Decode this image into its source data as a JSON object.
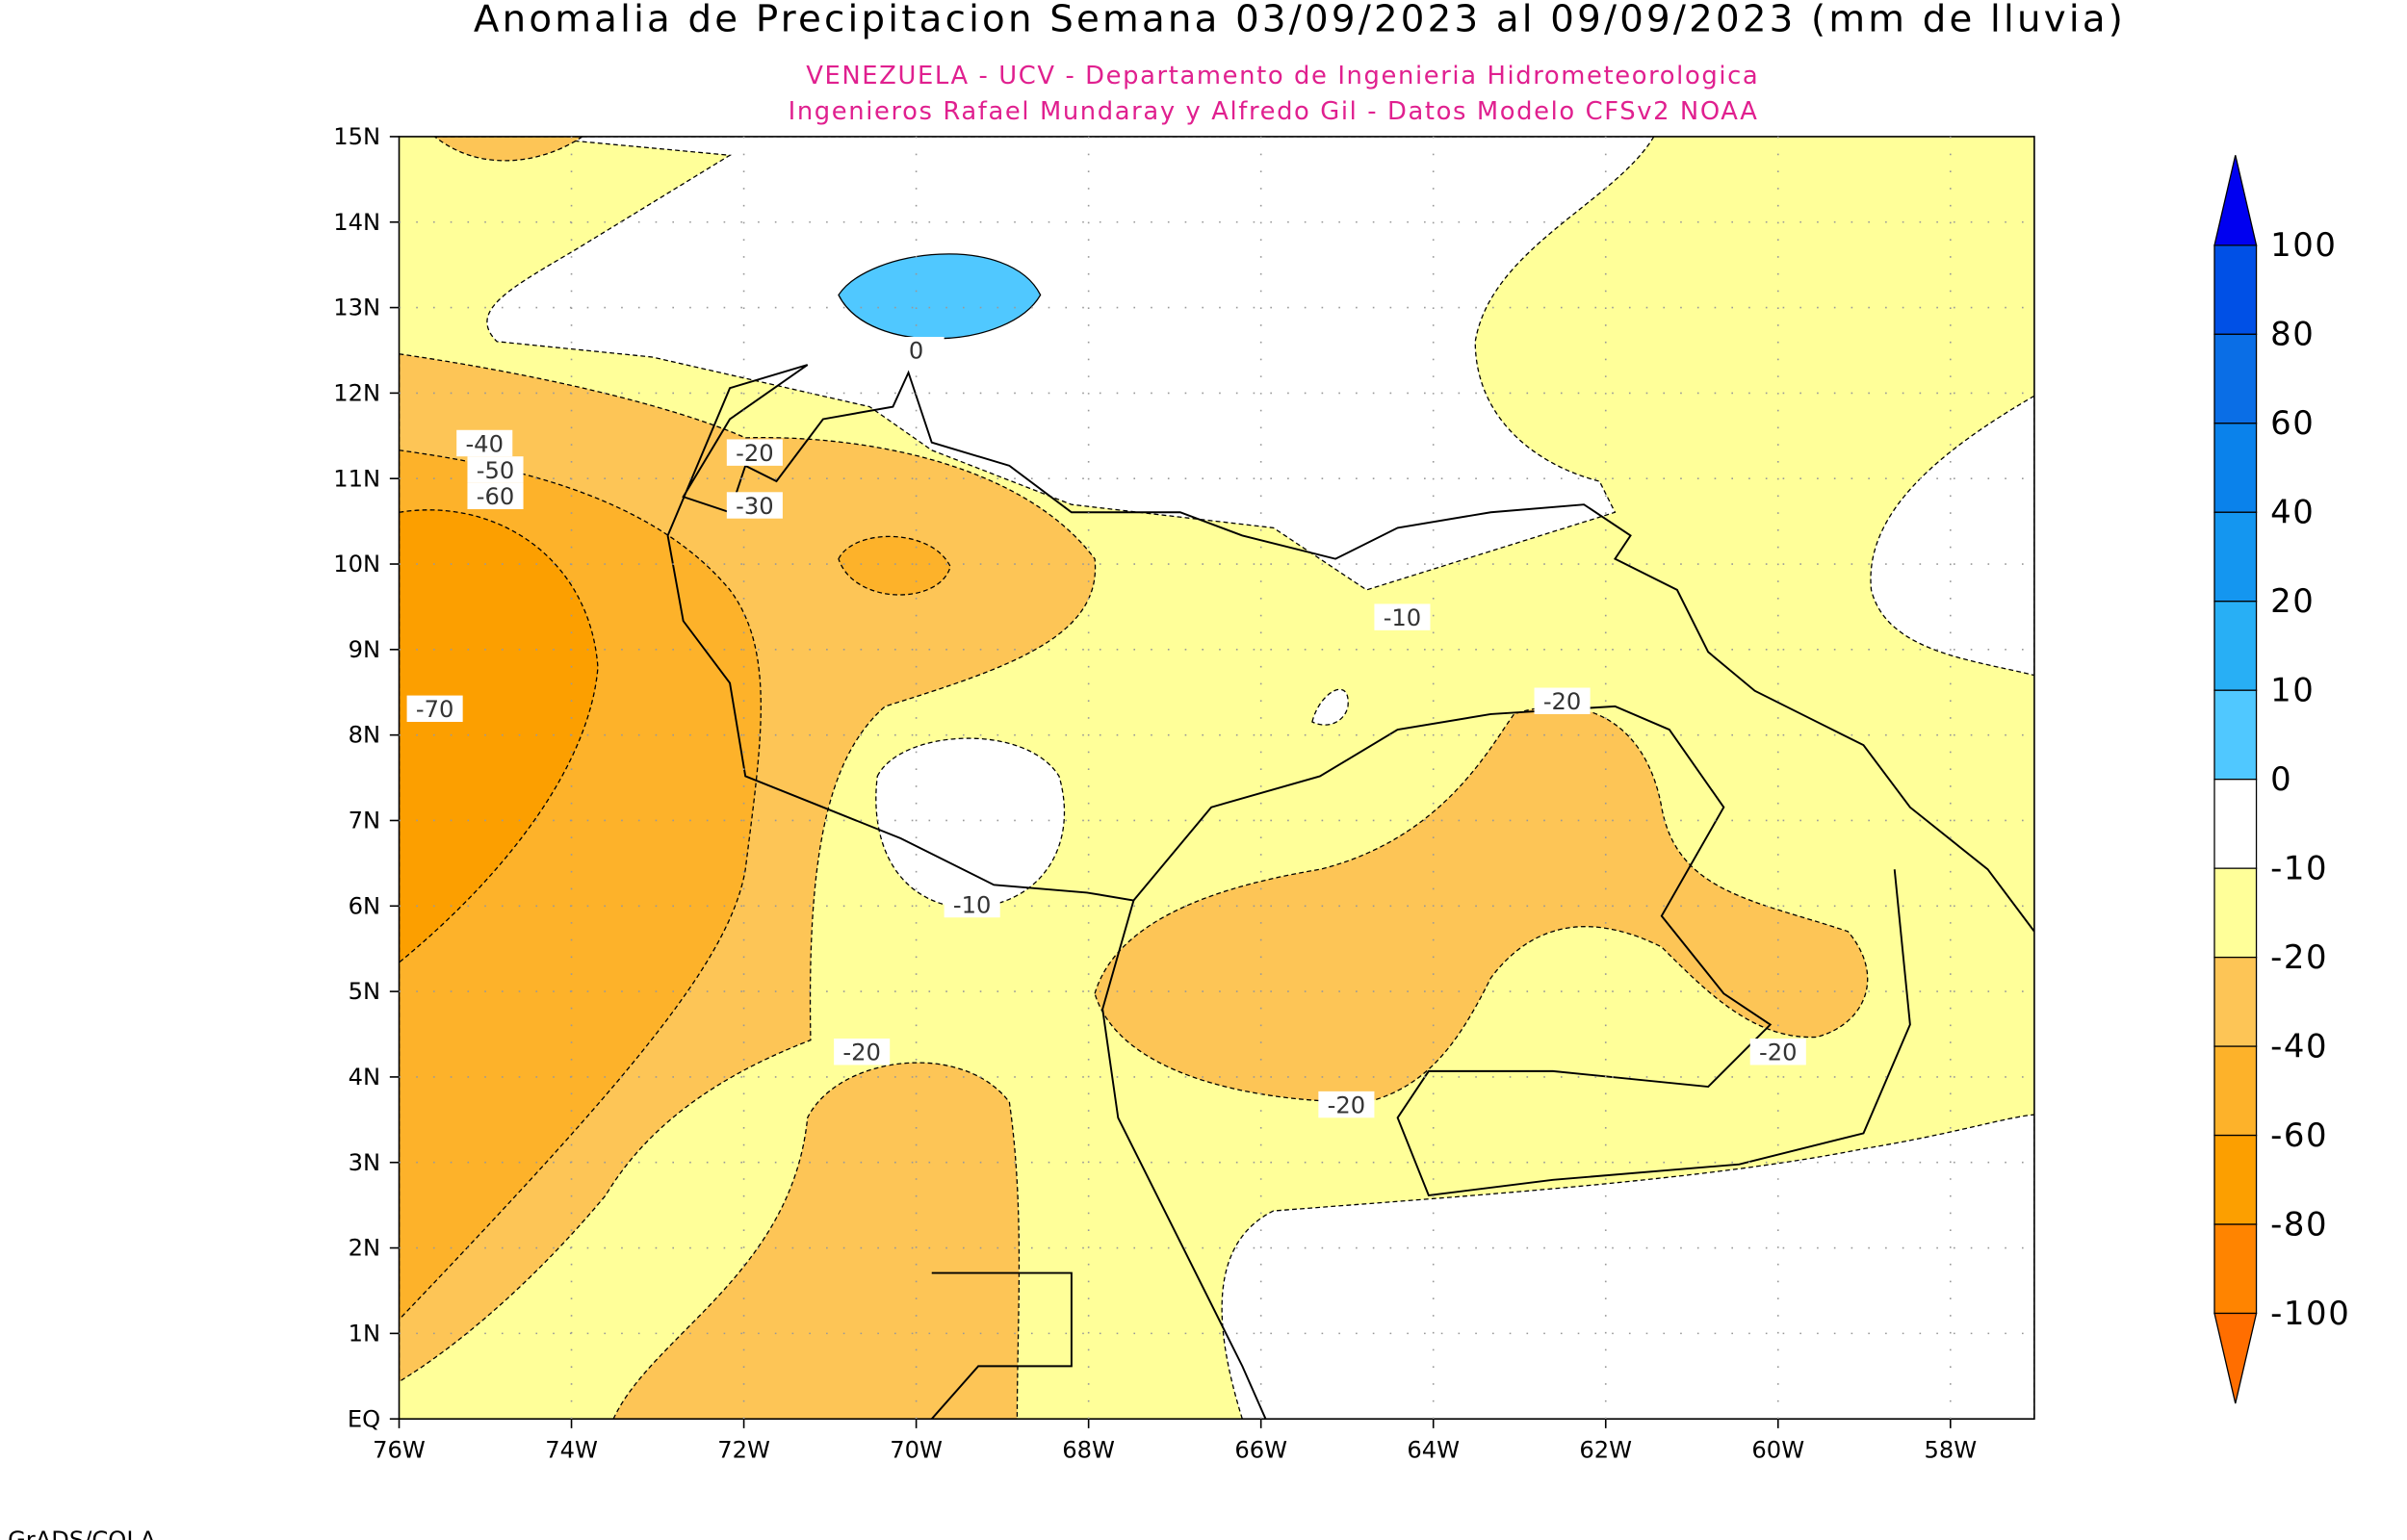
{
  "header": {
    "title": "Anomalia de Precipitacion Semana 03/09/2023 al 09/09/2023 (mm de lluvia)",
    "subtitle_lines": [
      "VENEZUELA - UCV - Departamento de Ingenieria Hidrometeorologica",
      "Ingenieros Rafael Mundaray y Alfredo Gil - Datos Modelo CFSv2 NOAA"
    ]
  },
  "map": {
    "lat_ticks": [
      "15N",
      "14N",
      "13N",
      "12N",
      "11N",
      "10N",
      "9N",
      "8N",
      "7N",
      "6N",
      "5N",
      "4N",
      "3N",
      "2N",
      "1N",
      "EQ"
    ],
    "lon_ticks": [
      "76W",
      "74W",
      "72W",
      "70W",
      "68W",
      "66W",
      "64W",
      "62W",
      "60W",
      "58W"
    ],
    "contour_labels": [
      0,
      -40,
      -50,
      -60,
      -70,
      -20,
      -30,
      -10,
      -20,
      -10,
      -20,
      -20,
      -20
    ]
  },
  "colorbar": {
    "levels": [
      100,
      80,
      60,
      40,
      20,
      10,
      0,
      -10,
      -20,
      -40,
      -60,
      -80,
      -100
    ],
    "colors": [
      "#0050e6",
      "#0a6ee6",
      "#0a82eb",
      "#1496f0",
      "#28aff5",
      "#50c8ff",
      "#ffffff",
      "#ffff99",
      "#fdc556",
      "#fdb22a",
      "#fc9f00",
      "#ff8400"
    ],
    "top_color": "#0000f0",
    "bottom_color": "#ff6e00"
  },
  "footer": "GrADS/COLA"
}
